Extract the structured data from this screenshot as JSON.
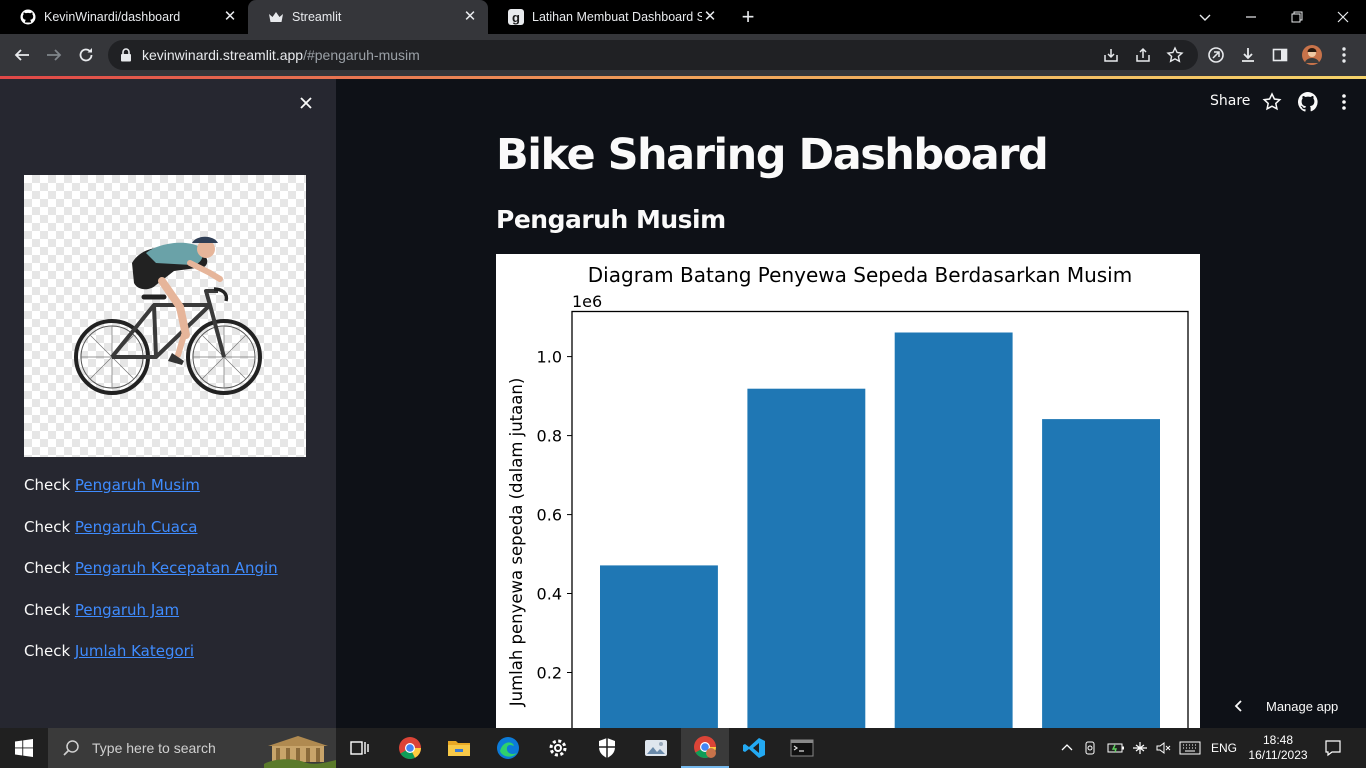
{
  "browser": {
    "tabs": [
      {
        "title": "KevinWinardi/dashboard",
        "icon": "github-icon"
      },
      {
        "title": "Streamlit",
        "icon": "streamlit-crown-icon",
        "active": true
      },
      {
        "title": "Latihan Membuat Dashboard Se",
        "icon": "dicoding-icon"
      }
    ],
    "url_host": "kevinwinardi.streamlit.app",
    "url_path": "/#pengaruh-musim"
  },
  "header": {
    "share_label": "Share"
  },
  "sidebar": {
    "image_alt": "cyclist-illustration",
    "links": [
      {
        "prefix": "Check ",
        "label": "Pengaruh Musim"
      },
      {
        "prefix": "Check ",
        "label": "Pengaruh Cuaca"
      },
      {
        "prefix": "Check ",
        "label": "Pengaruh Kecepatan Angin"
      },
      {
        "prefix": "Check ",
        "label": "Pengaruh Jam"
      },
      {
        "prefix": "Check ",
        "label": "Jumlah Kategori"
      }
    ]
  },
  "main": {
    "title": "Bike Sharing Dashboard",
    "section_title": "Pengaruh Musim",
    "manage_app_label": "Manage app"
  },
  "chart_data": {
    "type": "bar",
    "title": "Diagram Batang Penyewa Sepeda Berdasarkan Musim",
    "ylabel": "Jumlah penyewa sepeda (dalam jutaan)",
    "xlabel": "",
    "offset_label": "1e6",
    "values": [
      471348,
      918589,
      1061129,
      841613
    ],
    "yticks": [
      0.2,
      0.4,
      0.6,
      0.8,
      1.0
    ],
    "ytick_labels": [
      "0.2",
      "0.4",
      "0.6",
      "0.8",
      "1.0"
    ],
    "ylim": [
      0,
      1114185
    ],
    "bar_color": "#1f77b4",
    "grid": false
  },
  "taskbar": {
    "search_placeholder": "Type here to search",
    "language": "ENG",
    "time": "18:48",
    "date": "16/11/2023"
  }
}
